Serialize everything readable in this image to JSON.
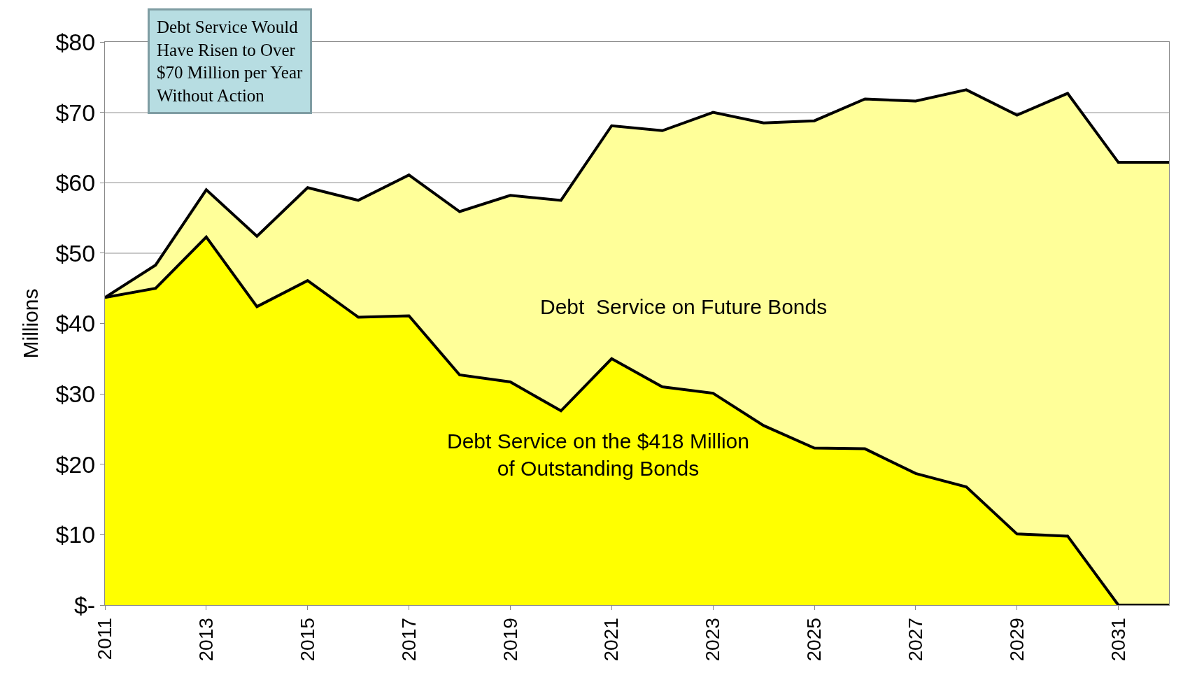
{
  "chart_data": {
    "type": "area",
    "stacked": true,
    "ylabel": "Millions",
    "x": [
      2011,
      2012,
      2013,
      2014,
      2015,
      2016,
      2017,
      2018,
      2019,
      2020,
      2021,
      2022,
      2023,
      2024,
      2025,
      2026,
      2027,
      2028,
      2029,
      2030,
      2031,
      2032
    ],
    "series": [
      {
        "name": "Debt Service on the $418 Million\nof Outstanding Bonds",
        "color": "#ffff00",
        "values": [
          43.7,
          45.0,
          52.3,
          42.4,
          46.1,
          40.9,
          41.1,
          32.7,
          31.7,
          27.6,
          35.0,
          31.0,
          30.1,
          25.5,
          22.3,
          22.2,
          18.7,
          16.8,
          10.1,
          9.8,
          0,
          0
        ]
      },
      {
        "name": "Debt  Service on Future Bonds",
        "color": "#ffff99",
        "values": [
          0.0,
          3.3,
          6.7,
          10.0,
          13.2,
          16.6,
          20.0,
          23.2,
          26.5,
          29.9,
          33.1,
          36.4,
          39.9,
          43.0,
          46.5,
          49.7,
          52.9,
          56.4,
          59.5,
          62.9,
          62.9,
          62.9
        ]
      }
    ],
    "annotations": [
      "Debt Service Would\nHave Risen to Over\n$70 Million per Year\nWithout Action"
    ],
    "xlim": [
      2011,
      2032
    ],
    "xticks": [
      2011,
      2013,
      2015,
      2017,
      2019,
      2021,
      2023,
      2025,
      2027,
      2029,
      2031
    ],
    "ylim": [
      0,
      80
    ],
    "yticks": [
      {
        "value": 0,
        "label": "$-"
      },
      {
        "value": 10,
        "label": "$10"
      },
      {
        "value": 20,
        "label": "$20"
      },
      {
        "value": 30,
        "label": "$30"
      },
      {
        "value": 40,
        "label": "$40"
      },
      {
        "value": 50,
        "label": "$50"
      },
      {
        "value": 60,
        "label": "$60"
      },
      {
        "value": 70,
        "label": "$70"
      },
      {
        "value": 80,
        "label": "$80"
      }
    ],
    "grid": "y",
    "legend": false
  }
}
